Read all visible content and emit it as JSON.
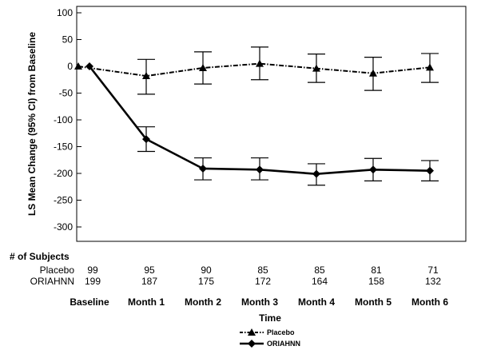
{
  "chart_data": {
    "type": "line",
    "ylabel": "LS Mean Change (95% CI) from Baseline",
    "xlabel": "Time",
    "categories": [
      "Baseline",
      "Month 1",
      "Month 2",
      "Month 3",
      "Month 4",
      "Month 5",
      "Month 6"
    ],
    "ylim": [
      -300,
      100
    ],
    "yticks": [
      100,
      50,
      0,
      -50,
      -100,
      -150,
      -200,
      -250,
      -300
    ],
    "series": [
      {
        "name": "Placebo",
        "line_style": "dash-dot",
        "marker": "triangle",
        "values": [
          0,
          -18,
          -3,
          5,
          -4,
          -13,
          -2
        ],
        "ci_lower": [
          null,
          -52,
          -33,
          -25,
          -30,
          -45,
          -30
        ],
        "ci_upper": [
          null,
          13,
          27,
          36,
          23,
          17,
          24
        ]
      },
      {
        "name": "ORIAHNN",
        "line_style": "solid",
        "marker": "diamond",
        "values": [
          0,
          -136,
          -191,
          -193,
          -201,
          -193,
          -195
        ],
        "ci_lower": [
          null,
          -159,
          -212,
          -212,
          -222,
          -214,
          -214
        ],
        "ci_upper": [
          null,
          -113,
          -171,
          -171,
          -182,
          -172,
          -176
        ]
      }
    ],
    "subjects": {
      "header": "# of Subjects",
      "rows": [
        {
          "label": "Placebo",
          "values": [
            "99",
            "95",
            "90",
            "85",
            "85",
            "81",
            "71"
          ]
        },
        {
          "label": "ORIAHNN",
          "values": [
            "199",
            "187",
            "175",
            "172",
            "164",
            "158",
            "132"
          ]
        }
      ]
    },
    "legend_position": "bottom-center",
    "grid": false
  }
}
